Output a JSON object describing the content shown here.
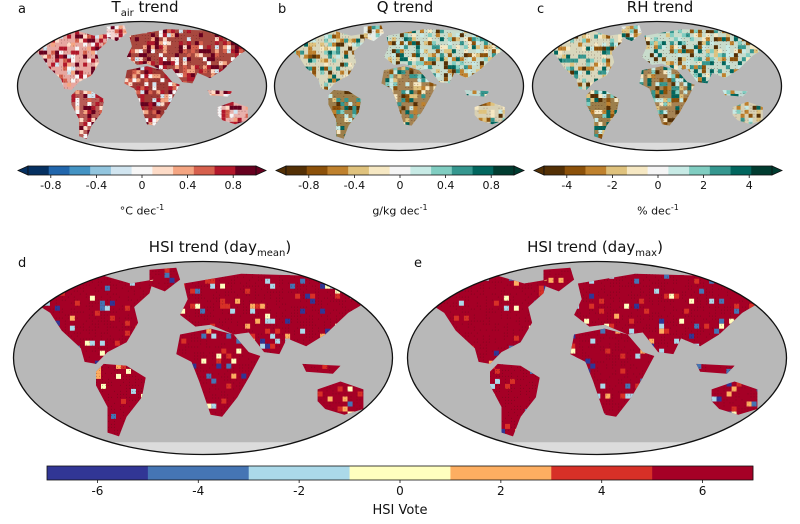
{
  "panels": [
    {
      "id": "a",
      "letter": "a",
      "title_main": "T",
      "title_sub": "air",
      "title_rest": " trend",
      "style": "warm"
    },
    {
      "id": "b",
      "letter": "b",
      "title_main": "Q trend",
      "title_sub": "",
      "title_rest": "",
      "style": "moist"
    },
    {
      "id": "c",
      "letter": "c",
      "title_main": "RH trend",
      "title_sub": "",
      "title_rest": "",
      "style": "moist"
    },
    {
      "id": "d",
      "letter": "d",
      "title_main": "HSI trend (day",
      "title_sub": "mean",
      "title_rest": ")",
      "style": "hsi"
    },
    {
      "id": "e",
      "letter": "e",
      "title_main": "HSI trend (day",
      "title_sub": "max",
      "title_rest": ")",
      "style": "hsi"
    }
  ],
  "colorbars": [
    {
      "id": "tair",
      "label_main": "°C dec",
      "label_sup": "-1",
      "ticks": [
        "-0.8",
        "-0.4",
        "0",
        "0.4",
        "0.8"
      ],
      "tick_values": [
        -0.8,
        -0.4,
        0,
        0.4,
        0.8
      ],
      "range": [
        -1.0,
        1.0
      ],
      "colors": [
        "#053061",
        "#2166ac",
        "#4393c3",
        "#92c5de",
        "#d1e5f0",
        "#f7f7f7",
        "#fddbc7",
        "#f4a582",
        "#d6604d",
        "#b2182b",
        "#67001f"
      ]
    },
    {
      "id": "q",
      "label_main": "g/kg dec",
      "label_sup": "-1",
      "ticks": [
        "-0.8",
        "-0.4",
        "0",
        "0.4",
        "0.8"
      ],
      "tick_values": [
        -0.8,
        -0.4,
        0,
        0.4,
        0.8
      ],
      "range": [
        -1.0,
        1.0
      ],
      "colors": [
        "#543005",
        "#8c510a",
        "#bf812d",
        "#dfc27d",
        "#f6e8c3",
        "#f5f5f5",
        "#c7eae5",
        "#80cdc1",
        "#35978f",
        "#01665e",
        "#003c30"
      ]
    },
    {
      "id": "rh",
      "label_main": "% dec",
      "label_sup": "-1",
      "ticks": [
        "-4",
        "-2",
        "0",
        "2",
        "4"
      ],
      "tick_values": [
        -4,
        -2,
        0,
        2,
        4
      ],
      "range": [
        -5,
        5
      ],
      "colors": [
        "#543005",
        "#8c510a",
        "#bf812d",
        "#dfc27d",
        "#f6e8c3",
        "#f5f5f5",
        "#c7eae5",
        "#80cdc1",
        "#35978f",
        "#01665e",
        "#003c30"
      ]
    },
    {
      "id": "hsi",
      "label_main": "HSI Vote",
      "label_sup": "",
      "ticks": [
        "-6",
        "-4",
        "-2",
        "0",
        "2",
        "4",
        "6"
      ],
      "tick_values": [
        -6,
        -4,
        -2,
        0,
        2,
        4,
        6
      ],
      "range": [
        -7,
        7
      ],
      "colors": [
        "#313695",
        "#4575b4",
        "#abd9e9",
        "#ffffbf",
        "#fdae61",
        "#d73027",
        "#a50026"
      ]
    }
  ],
  "chart_data": [
    {
      "type": "heatmap",
      "title": "T_air trend",
      "colorbar_label": "°C dec-1",
      "colorbar_ticks": [
        -0.8,
        -0.4,
        0,
        0.4,
        0.8
      ]
    },
    {
      "type": "heatmap",
      "title": "Q trend",
      "colorbar_label": "g/kg dec-1",
      "colorbar_ticks": [
        -0.8,
        -0.4,
        0,
        0.4,
        0.8
      ]
    },
    {
      "type": "heatmap",
      "title": "RH trend",
      "colorbar_label": "% dec-1",
      "colorbar_ticks": [
        -4,
        -2,
        0,
        2,
        4
      ]
    },
    {
      "type": "heatmap",
      "title": "HSI trend (day_mean)",
      "colorbar_label": "HSI Vote",
      "colorbar_ticks": [
        -6,
        -4,
        -2,
        0,
        2,
        4,
        6
      ]
    },
    {
      "type": "heatmap",
      "title": "HSI trend (day_max)",
      "colorbar_label": "HSI Vote",
      "colorbar_ticks": [
        -6,
        -4,
        -2,
        0,
        2,
        4,
        6
      ]
    }
  ],
  "map_style": {
    "ocean": "#b8b8b8",
    "antarctica": "#dcdcdc",
    "border": "#111111"
  }
}
